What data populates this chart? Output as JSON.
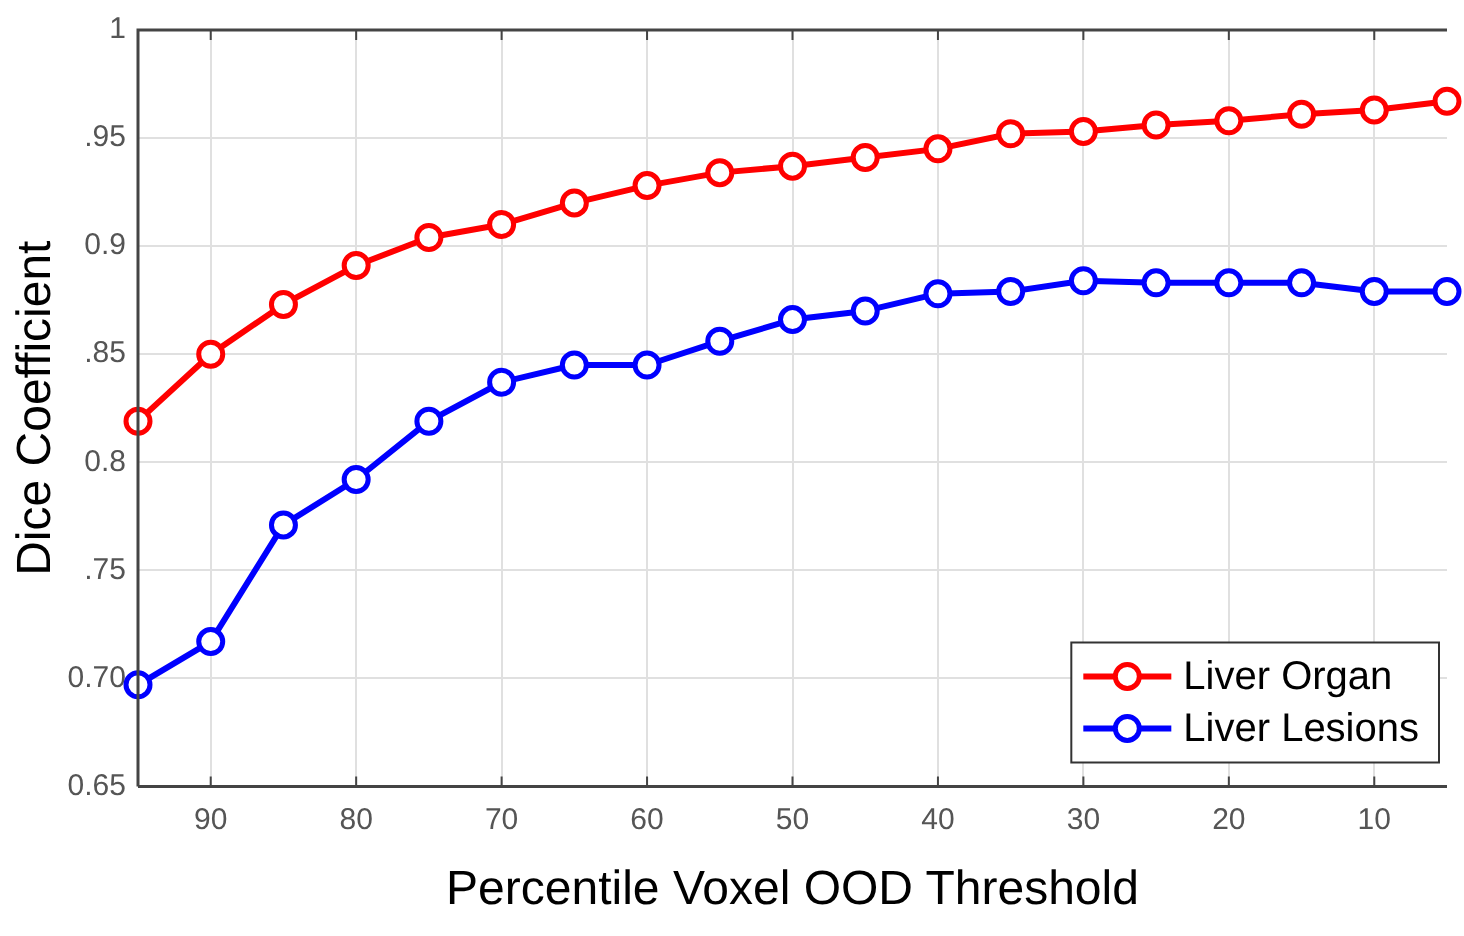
{
  "chart_data": {
    "type": "line",
    "xlabel": "Percentile Voxel OOD Threshold",
    "ylabel": "Dice Coefficient",
    "x": [
      95,
      90,
      85,
      80,
      75,
      70,
      65,
      60,
      55,
      50,
      45,
      40,
      35,
      30,
      25,
      20,
      15,
      10,
      5
    ],
    "series": [
      {
        "name": "Liver Organ",
        "color": "#ff0000",
        "values": [
          0.819,
          0.85,
          0.873,
          0.891,
          0.904,
          0.91,
          0.92,
          0.928,
          0.934,
          0.937,
          0.941,
          0.945,
          0.952,
          0.953,
          0.956,
          0.958,
          0.961,
          0.963,
          0.967
        ]
      },
      {
        "name": "Liver Lesions",
        "color": "#0000ff",
        "values": [
          0.697,
          0.717,
          0.771,
          0.792,
          0.819,
          0.837,
          0.845,
          0.845,
          0.856,
          0.866,
          0.87,
          0.878,
          0.879,
          0.884,
          0.883,
          0.883,
          0.883,
          0.879,
          0.879
        ]
      }
    ],
    "xlim": [
      95,
      5
    ],
    "xticks": [
      90,
      80,
      70,
      60,
      50,
      40,
      30,
      20,
      10
    ],
    "ylim": [
      0.65,
      1
    ],
    "yticks": [
      {
        "value": 0.65,
        "label": "0.65"
      },
      {
        "value": 0.7,
        "label": "0.70"
      },
      {
        "value": 0.75,
        "label": ".75"
      },
      {
        "value": 0.8,
        "label": "0.8"
      },
      {
        "value": 0.85,
        "label": ".85"
      },
      {
        "value": 0.9,
        "label": "0.9"
      },
      {
        "value": 0.95,
        "label": ".95"
      },
      {
        "value": 1,
        "label": "1"
      }
    ],
    "grid": true,
    "legend": "bottom right",
    "marker": "circle",
    "line_style": "solid"
  }
}
